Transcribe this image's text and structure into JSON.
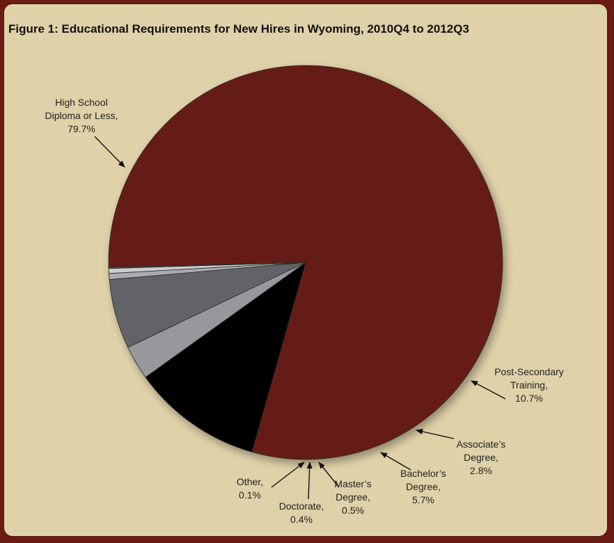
{
  "title": "Figure 1: Educational Requirements for New Hires in Wyoming, 2010Q4 to 2012Q3",
  "colors": {
    "background": "#dfd1a8",
    "frame": "#6b1c12"
  },
  "chart_data": {
    "type": "pie",
    "title": "Figure 1: Educational Requirements for New Hires in Wyoming, 2010Q4 to 2012Q3",
    "slices": [
      {
        "label_lines": [
          "High School",
          "Diploma or Less,",
          "79.7%"
        ],
        "value": 79.7,
        "color": "#661a12"
      },
      {
        "label_lines": [
          "Post-Secondary",
          "Training,",
          "10.7%"
        ],
        "value": 10.7,
        "color": "#000000"
      },
      {
        "label_lines": [
          "Associate’s",
          "Degree,",
          "2.8%"
        ],
        "value": 2.8,
        "color": "#97989b"
      },
      {
        "label_lines": [
          "Bachelor’s",
          "Degree,",
          "5.7%"
        ],
        "value": 5.7,
        "color": "#626366"
      },
      {
        "label_lines": [
          "Master’s",
          "Degree,",
          "0.5%"
        ],
        "value": 0.5,
        "color": "#a9abae"
      },
      {
        "label_lines": [
          "Doctorate,",
          "0.4%"
        ],
        "value": 0.4,
        "color": "#cbcdd0"
      },
      {
        "label_lines": [
          "Other,",
          "0.1%"
        ],
        "value": 0.1,
        "color": "#5a5b5e"
      }
    ]
  }
}
